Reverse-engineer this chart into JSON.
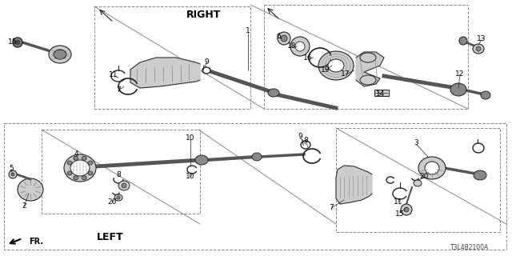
{
  "bg_color": "#ffffff",
  "diagram_code": "T3L4B2100A",
  "right_label": "RIGHT",
  "left_label": "LEFT",
  "fr_label": "FR.",
  "line_color": "#222222",
  "dash_color": "#888888",
  "part_color": "#333333",
  "fill_dark": "#555555",
  "fill_mid": "#888888",
  "fill_light": "#cccccc",
  "fill_white": "#ffffff"
}
